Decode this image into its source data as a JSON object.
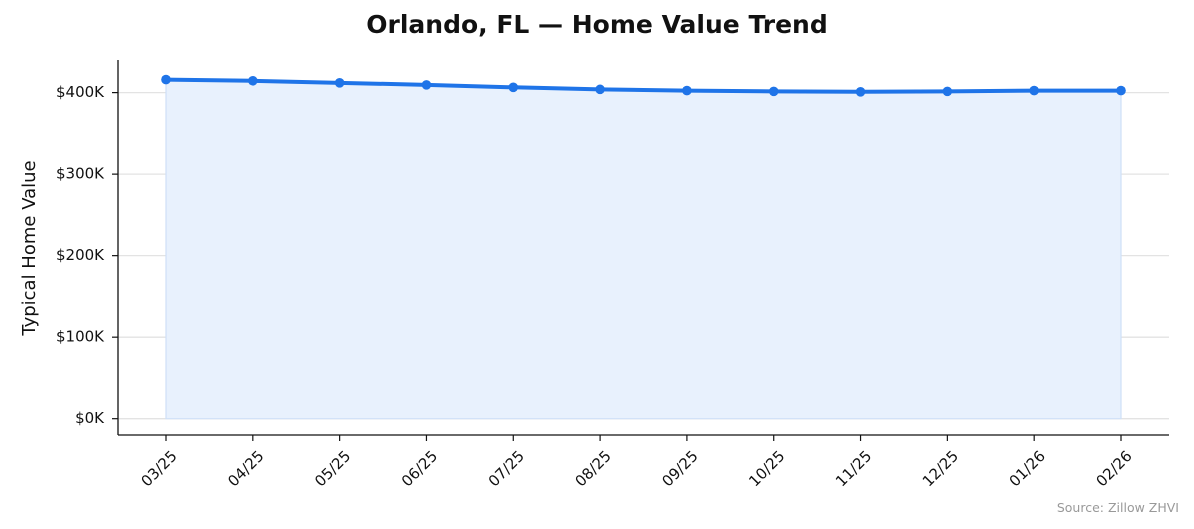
{
  "chart_data": {
    "type": "line",
    "title": "Orlando, FL — Home Value Trend",
    "xlabel": "",
    "ylabel": "Typical Home Value",
    "categories": [
      "03/25",
      "04/25",
      "05/25",
      "06/25",
      "07/25",
      "08/25",
      "09/25",
      "10/25",
      "11/25",
      "12/25",
      "01/26",
      "02/26"
    ],
    "series": [
      {
        "values": [
          416000,
          414500,
          412000,
          409500,
          406500,
          404000,
          402500,
          401500,
          401000,
          401500,
          402500,
          402500
        ]
      }
    ],
    "ylim": [
      -20000,
      440000
    ],
    "yticks": [
      0,
      100000,
      200000,
      300000,
      400000
    ],
    "ytick_labels": [
      "$0K",
      "$100K",
      "$200K",
      "$300K",
      "$400K"
    ],
    "grid": true,
    "fill_area": true,
    "colors": {
      "line": "#1f74e8",
      "fill": "#e8f1fd",
      "grid": "#e3e3e3",
      "axis": "#111111"
    }
  },
  "source_note": "Source: Zillow ZHVI"
}
